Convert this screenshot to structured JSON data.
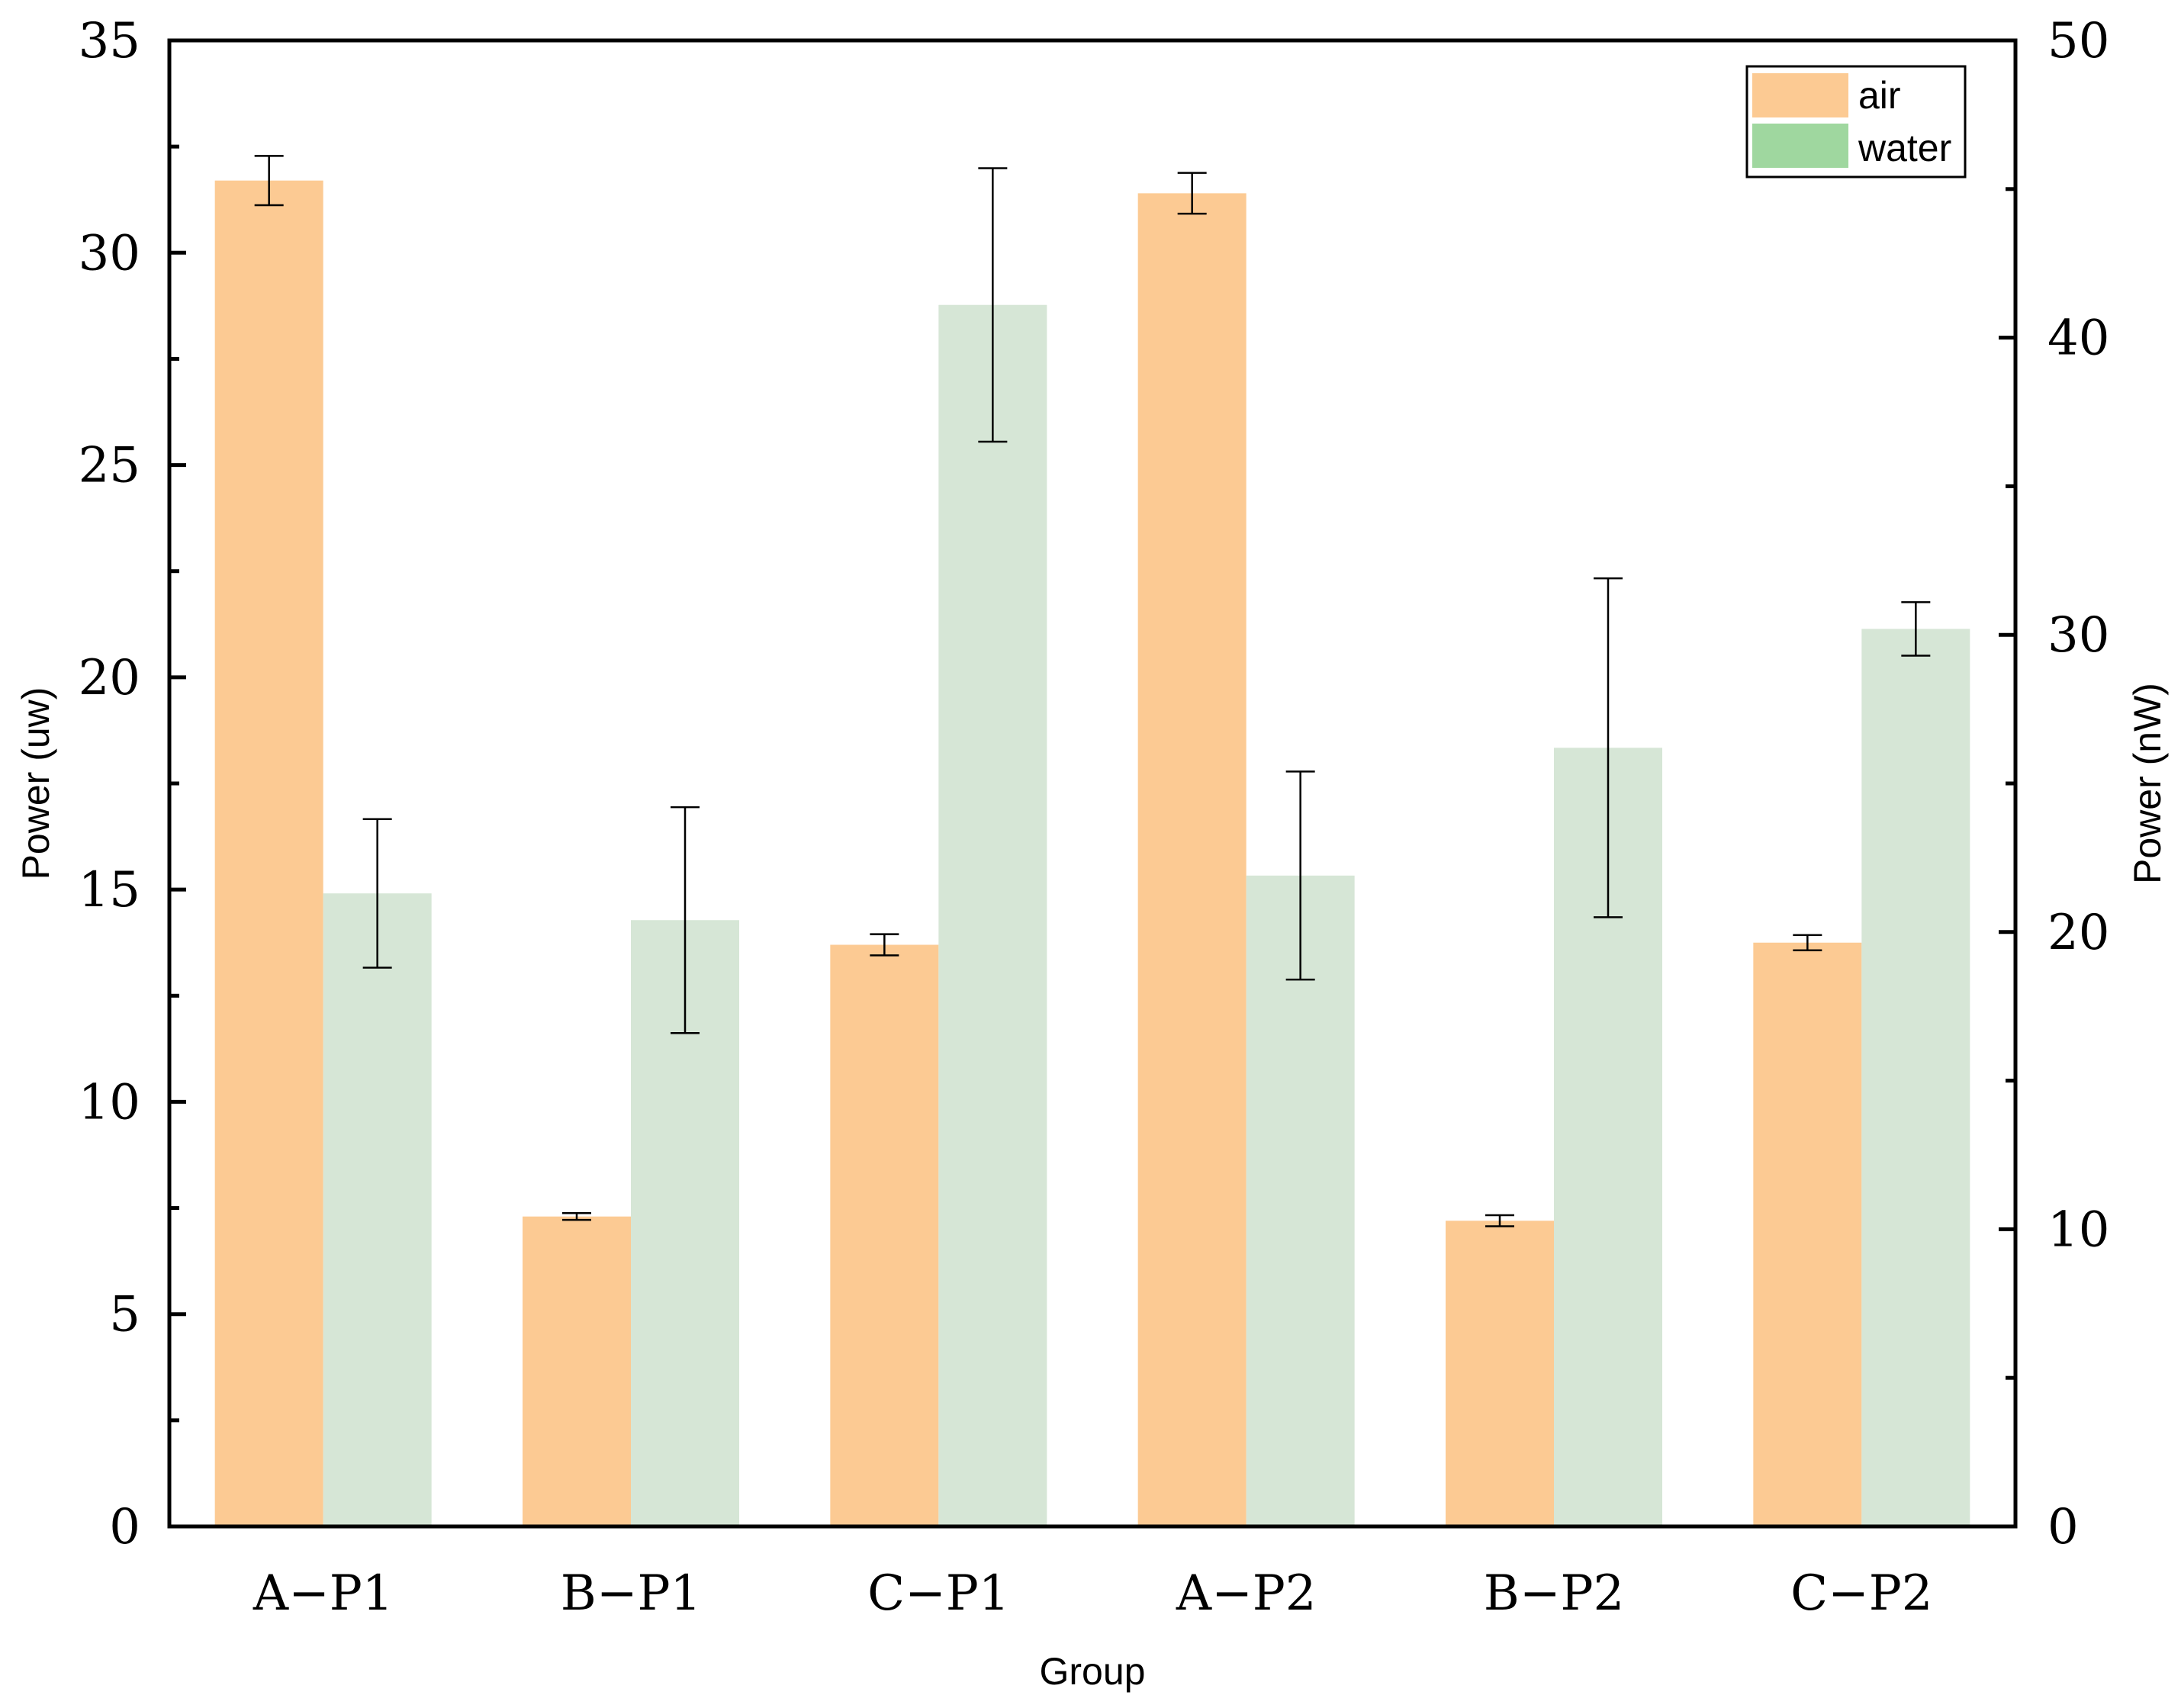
{
  "chart_data": {
    "type": "bar",
    "title": "",
    "xlabel": "Group",
    "ylabel": "Power (uw)",
    "y2label": "Power (nW)",
    "categories": [
      "A−P1",
      "B−P1",
      "C−P1",
      "A−P2",
      "B−P2",
      "C−P2"
    ],
    "ylim": [
      0,
      35
    ],
    "y2lim": [
      0,
      50
    ],
    "yticks": [
      "0",
      "5",
      "10",
      "15",
      "20",
      "25",
      "30",
      "35"
    ],
    "y2ticks": [
      "0",
      "10",
      "20",
      "30",
      "40",
      "50"
    ],
    "legend_position": "top-right",
    "series": [
      {
        "name": "air",
        "axis": "left",
        "color": "#FCCA93",
        "values": [
          31.7,
          7.3,
          13.7,
          31.4,
          7.2,
          13.75
        ],
        "errors": [
          0.58,
          0.08,
          0.25,
          0.48,
          0.13,
          0.18
        ]
      },
      {
        "name": "water",
        "axis": "right",
        "color": "#D6E6D6",
        "legend_color": "#9FD79F",
        "values": [
          21.3,
          20.4,
          41.1,
          21.9,
          26.2,
          30.2
        ],
        "errors": [
          2.5,
          3.8,
          4.6,
          3.5,
          5.7,
          0.9
        ]
      }
    ]
  }
}
